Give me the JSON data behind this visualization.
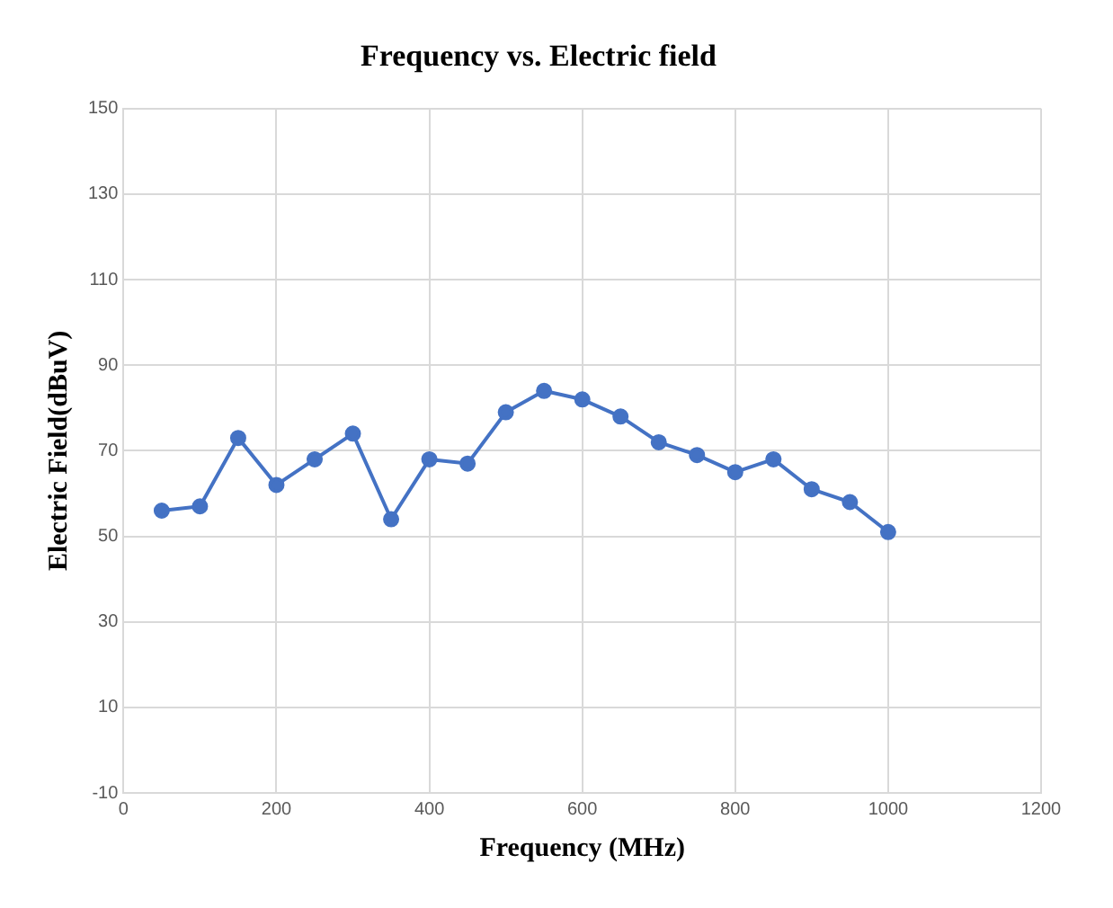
{
  "chart_data": {
    "type": "line",
    "title": "Frequency vs. Electric field",
    "xlabel": "Frequency (MHz)",
    "ylabel": "Electric Field(dBuV)",
    "x": [
      50,
      100,
      150,
      200,
      250,
      300,
      350,
      400,
      450,
      500,
      550,
      600,
      650,
      700,
      750,
      800,
      850,
      900,
      950,
      1000
    ],
    "series": [
      {
        "color": "#4472c4",
        "values": [
          56,
          57,
          73,
          62,
          68,
          74,
          54,
          68,
          67,
          79,
          84,
          82,
          78,
          72,
          69,
          65,
          68,
          61,
          58,
          51
        ]
      }
    ],
    "xlim": [
      0,
      1200
    ],
    "xticks": [
      0,
      200,
      400,
      600,
      800,
      1000,
      1200
    ],
    "ylim": [
      -10,
      150
    ],
    "yticks": [
      -10,
      10,
      30,
      50,
      70,
      90,
      110,
      130,
      150
    ],
    "grid": true,
    "marker": "circle",
    "line_style": "solid",
    "legend": false
  }
}
